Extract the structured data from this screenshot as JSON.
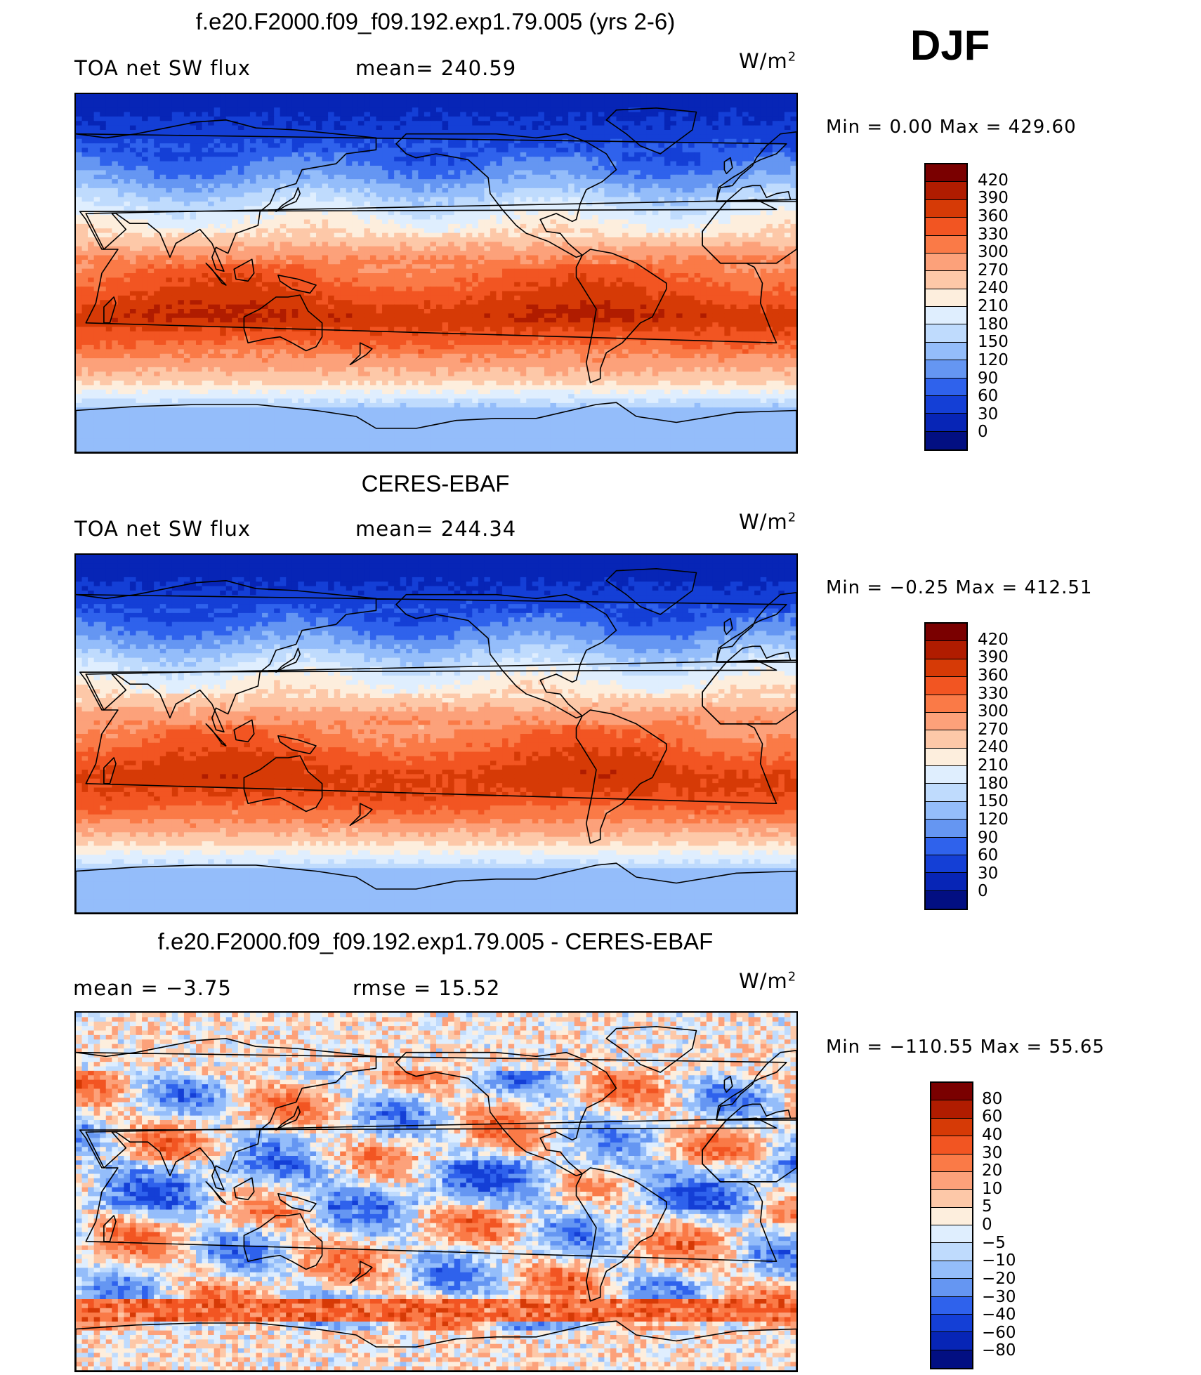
{
  "season": "DJF",
  "units": "W/m",
  "units_sup": "2",
  "panels": [
    {
      "title": "f.e20.F2000.f09_f09.192.exp1.79.005 (yrs 2-6)",
      "left_label": "TOA net SW flux",
      "mid_label": "mean= 240.59",
      "minmax": "Min =    0.00 Max =  429.60",
      "colorbar_labels": [
        "420",
        "390",
        "360",
        "330",
        "300",
        "270",
        "240",
        "210",
        "180",
        "150",
        "120",
        "90",
        "60",
        "30",
        "0"
      ]
    },
    {
      "title": "CERES-EBAF",
      "left_label": "TOA net SW flux",
      "mid_label": "mean= 244.34",
      "minmax": "Min =  −0.25 Max = 412.51",
      "colorbar_labels": [
        "420",
        "390",
        "360",
        "330",
        "300",
        "270",
        "240",
        "210",
        "180",
        "150",
        "120",
        "90",
        "60",
        "30",
        "0"
      ]
    },
    {
      "title": "f.e20.F2000.f09_f09.192.exp1.79.005 - CERES-EBAF",
      "left_label": "mean =   −3.75",
      "mid_label": "rmse =   15.52",
      "minmax": "Min = −110.55 Max =   55.65",
      "colorbar_labels": [
        "80",
        "60",
        "40",
        "30",
        "20",
        "10",
        "5",
        "0",
        "−5",
        "−10",
        "−20",
        "−30",
        "−40",
        "−60",
        "−80"
      ]
    }
  ],
  "colors": {
    "abs_scale": [
      "#7a0000",
      "#b01c00",
      "#d63a06",
      "#f25522",
      "#fa7a47",
      "#fca17a",
      "#fdc8a8",
      "#fdeedd",
      "#dfeefe",
      "#bfdbfd",
      "#94bdfa",
      "#6596f2",
      "#2f62ec",
      "#143fd6",
      "#0725b6",
      "#020f82"
    ],
    "diff_scale": [
      "#7a0000",
      "#b01c00",
      "#d63a06",
      "#f25522",
      "#fa7a47",
      "#fca17a",
      "#fdc8a8",
      "#fdeedd",
      "#dfeefe",
      "#bfdbfd",
      "#94bdfa",
      "#6596f2",
      "#2f62ec",
      "#143fd6",
      "#0725b6",
      "#020f82"
    ]
  },
  "chart_data": [
    {
      "type": "heatmap",
      "title": "f.e20.F2000.f09_f09.192.exp1.79.005 (yrs 2-6)",
      "variable": "TOA net SW flux",
      "units": "W/m2",
      "season": "DJF",
      "mean": 240.59,
      "min": 0.0,
      "max": 429.6,
      "levels": [
        0,
        30,
        60,
        90,
        120,
        150,
        180,
        210,
        240,
        270,
        300,
        330,
        360,
        390,
        420
      ],
      "zonal_band_values_north_to_south": [
        15,
        45,
        75,
        110,
        160,
        205,
        245,
        300,
        335,
        360,
        390,
        345,
        290,
        250,
        160,
        130
      ],
      "zonal_band_latitudes": [
        85,
        70,
        58,
        48,
        38,
        28,
        18,
        8,
        -2,
        -12,
        -22,
        -32,
        -44,
        -54,
        -66,
        -80
      ]
    },
    {
      "type": "heatmap",
      "title": "CERES-EBAF",
      "variable": "TOA net SW flux",
      "units": "W/m2",
      "season": "DJF",
      "mean": 244.34,
      "min": -0.25,
      "max": 412.51,
      "levels": [
        0,
        30,
        60,
        90,
        120,
        150,
        180,
        210,
        240,
        270,
        300,
        330,
        360,
        390,
        420
      ],
      "zonal_band_values_north_to_south": [
        5,
        40,
        70,
        110,
        160,
        205,
        245,
        290,
        320,
        350,
        375,
        355,
        300,
        250,
        170,
        120
      ],
      "zonal_band_latitudes": [
        85,
        70,
        58,
        48,
        38,
        28,
        18,
        8,
        -2,
        -12,
        -22,
        -32,
        -44,
        -54,
        -66,
        -80
      ]
    },
    {
      "type": "heatmap",
      "title": "f.e20.F2000.f09_f09.192.exp1.79.005 - CERES-EBAF",
      "units": "W/m2",
      "season": "DJF",
      "mean": -3.75,
      "rmse": 15.52,
      "min": -110.55,
      "max": 55.65,
      "levels": [
        -80,
        -60,
        -40,
        -30,
        -20,
        -10,
        -5,
        0,
        5,
        10,
        20,
        30,
        40,
        60,
        80
      ]
    }
  ]
}
